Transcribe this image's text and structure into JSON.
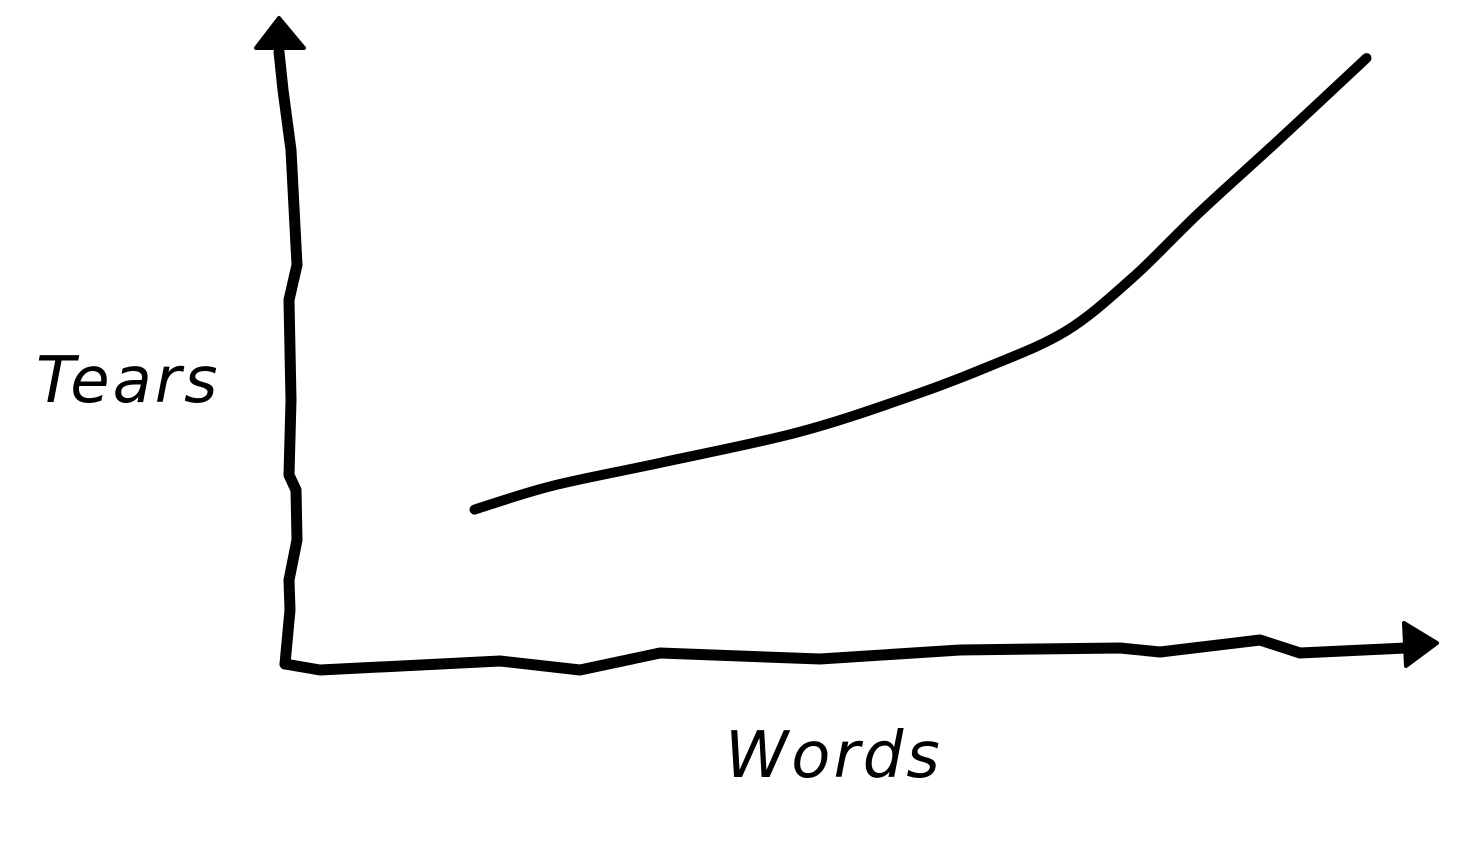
{
  "colors": {
    "ink": "#000000",
    "background": "#ffffff"
  },
  "chart_data": {
    "type": "line",
    "title": "",
    "xlabel": "Words",
    "ylabel": "Tears",
    "grid": false,
    "legend": "none",
    "axis_ticks": "none",
    "xlim": [
      0,
      10
    ],
    "ylim": [
      0,
      10
    ],
    "series": [
      {
        "x": [
          1.7,
          2.4,
          3.4,
          4.6,
          5.6,
          6.3,
          7.0,
          7.6,
          8.2,
          8.9,
          9.7
        ],
        "y": [
          2.6,
          3.0,
          3.4,
          3.9,
          4.5,
          5.0,
          5.6,
          6.5,
          7.6,
          8.8,
          10.2
        ]
      }
    ]
  }
}
